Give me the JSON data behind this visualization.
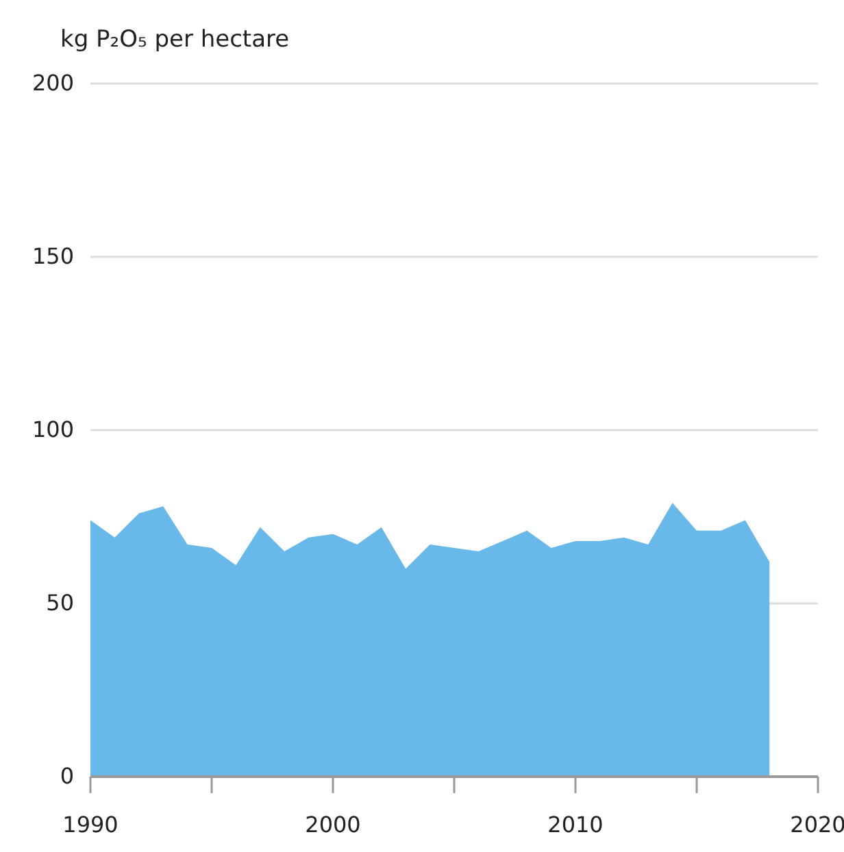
{
  "chart_data": {
    "type": "area",
    "ylabel": "kg P₂O₅ per hectare",
    "x": [
      1990,
      1991,
      1992,
      1993,
      1994,
      1995,
      1996,
      1997,
      1998,
      1999,
      2000,
      2001,
      2002,
      2003,
      2004,
      2005,
      2006,
      2007,
      2008,
      2009,
      2010,
      2011,
      2012,
      2013,
      2014,
      2015,
      2016,
      2017,
      2018
    ],
    "values": [
      74,
      69,
      76,
      78,
      67,
      66,
      61,
      72,
      65,
      69,
      70,
      67,
      72,
      60,
      67,
      66,
      65,
      68,
      71,
      66,
      68,
      68,
      69,
      67,
      79,
      71,
      71,
      74,
      62
    ],
    "color": "#68b8e9",
    "xlim": [
      1990,
      2020
    ],
    "xticks": [
      1990,
      {
        "value": 1995,
        "label": null
      },
      2000,
      {
        "value": 2005,
        "label": null
      },
      2010,
      {
        "value": 2015,
        "label": null
      },
      2020
    ],
    "ylim": [
      0,
      200
    ],
    "yticks": [
      0,
      50,
      100,
      150,
      200
    ],
    "grid": "y"
  }
}
